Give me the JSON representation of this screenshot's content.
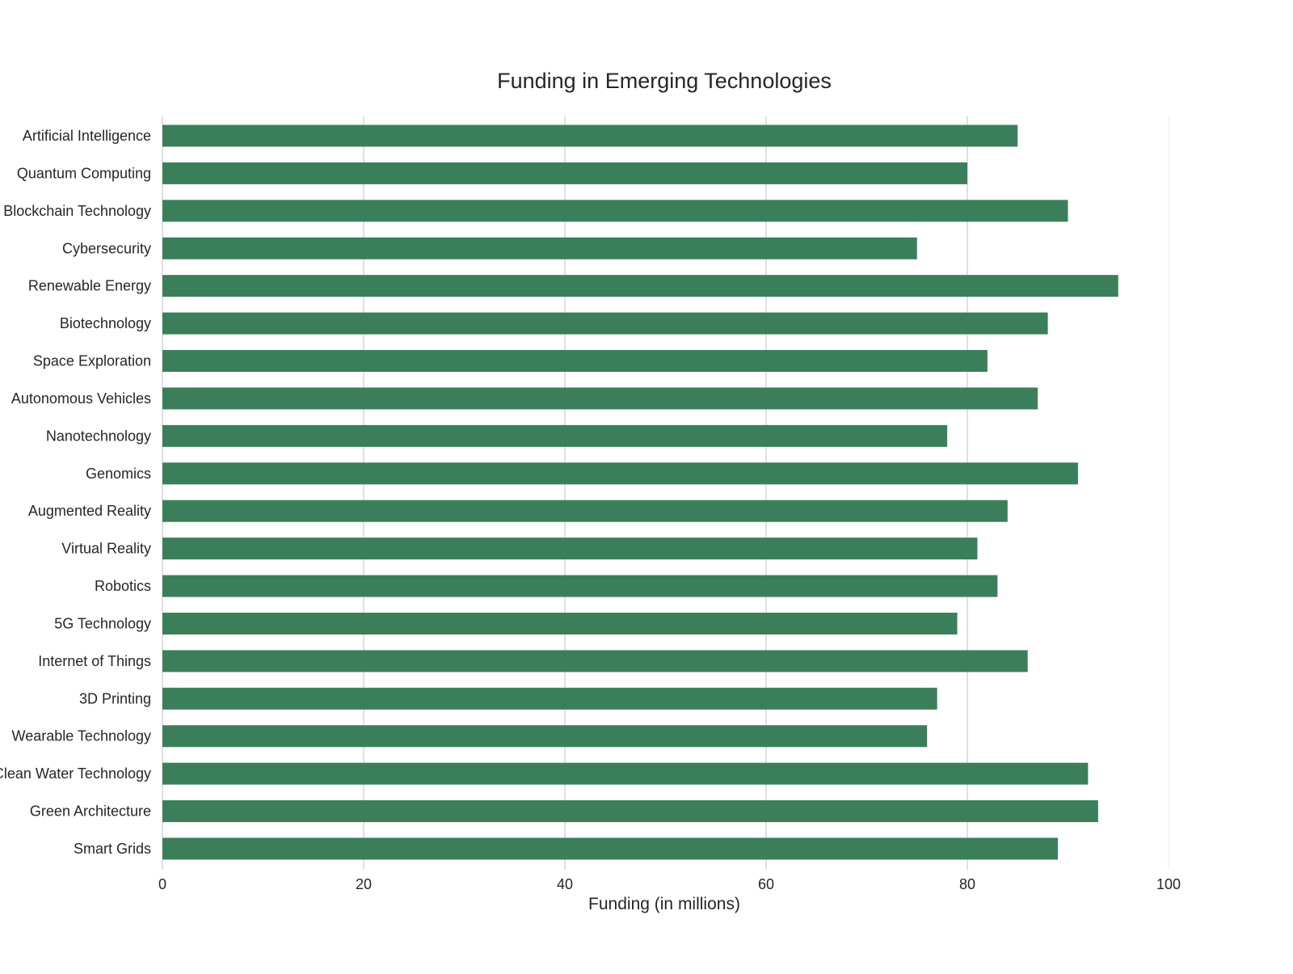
{
  "chart_data": {
    "type": "bar",
    "orientation": "horizontal",
    "title": "Funding in Emerging Technologies",
    "xlabel": "Funding (in millions)",
    "ylabel": "",
    "categories": [
      "Artificial Intelligence",
      "Quantum Computing",
      "Blockchain Technology",
      "Cybersecurity",
      "Renewable Energy",
      "Biotechnology",
      "Space Exploration",
      "Autonomous Vehicles",
      "Nanotechnology",
      "Genomics",
      "Augmented Reality",
      "Virtual Reality",
      "Robotics",
      "5G Technology",
      "Internet of Things",
      "3D Printing",
      "Wearable Technology",
      "Clean Water Technology",
      "Green Architecture",
      "Smart Grids"
    ],
    "values": [
      85,
      80,
      90,
      75,
      95,
      88,
      82,
      87,
      78,
      91,
      84,
      81,
      83,
      79,
      86,
      77,
      76,
      92,
      93,
      89
    ],
    "xlim": [
      0,
      100
    ],
    "xticks": [
      0,
      20,
      40,
      60,
      80,
      100
    ],
    "grid": "vertical",
    "legend": "none",
    "bar_color": "#3b7f5a",
    "grid_color": "#cccccc"
  }
}
